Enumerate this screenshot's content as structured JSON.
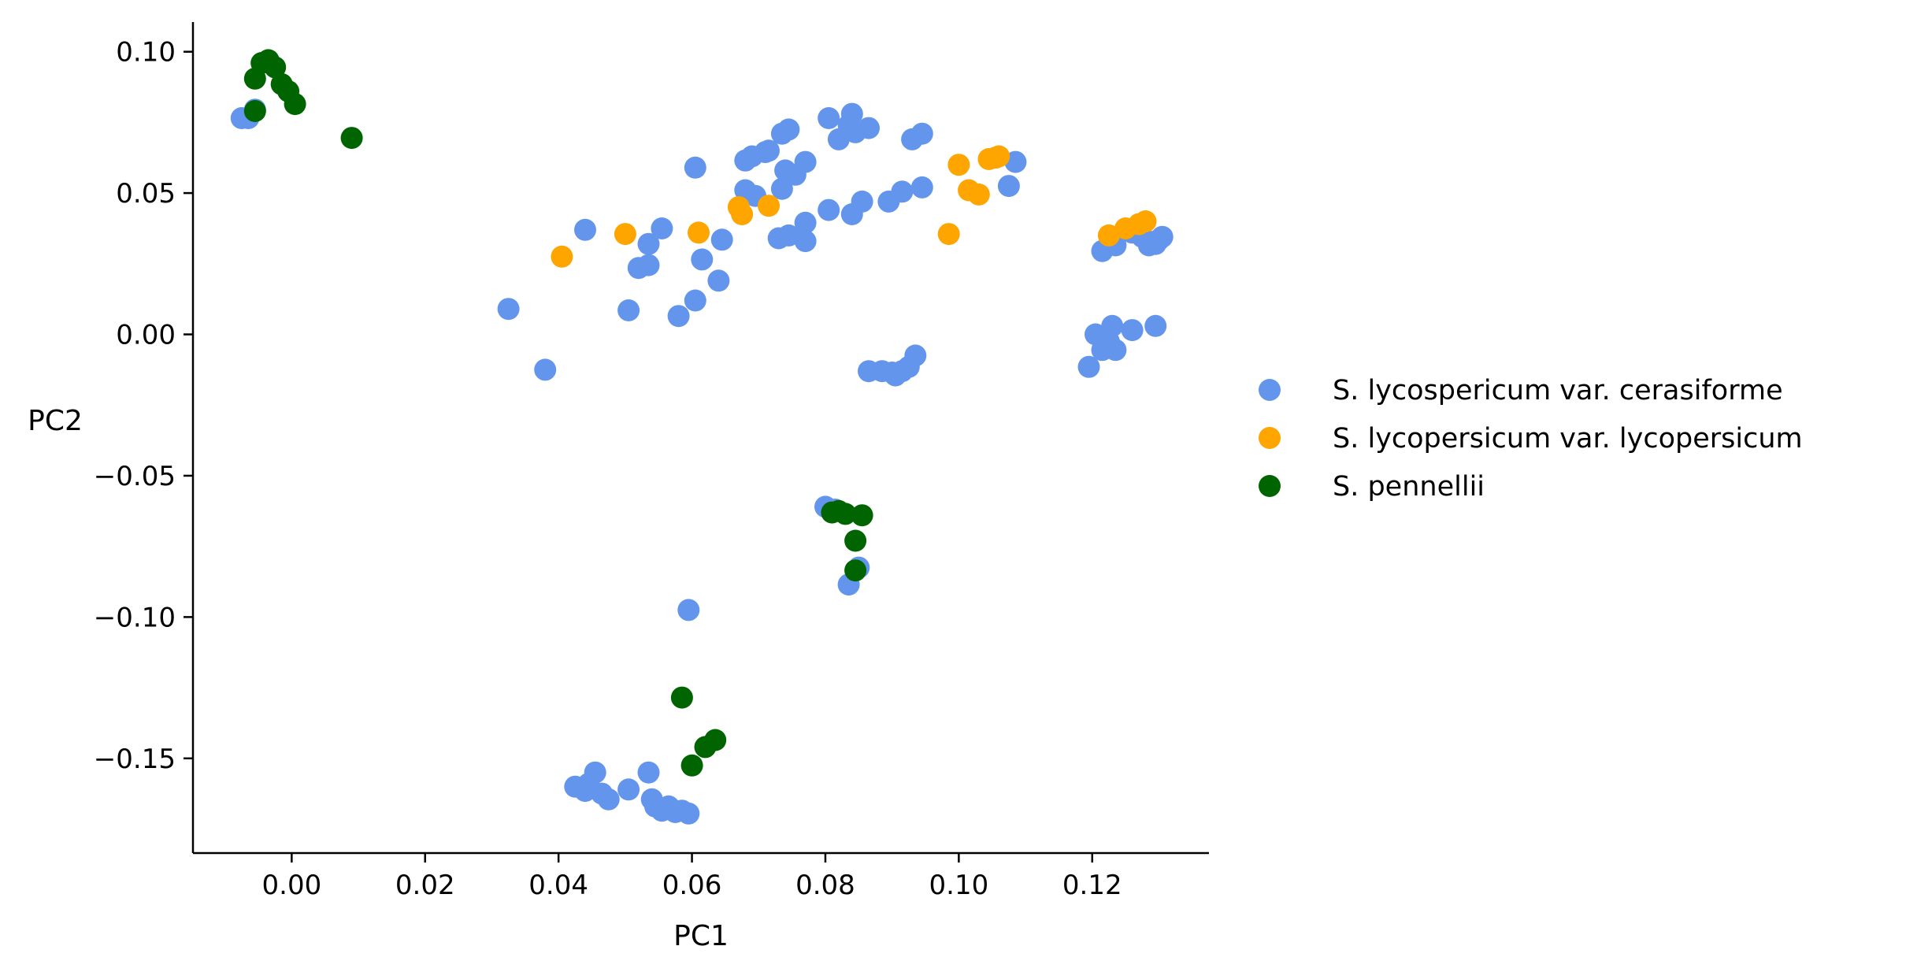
{
  "chart_data": {
    "type": "scatter",
    "xlabel": "PC1",
    "ylabel": "PC2",
    "xlim": [
      -0.0148,
      0.1375
    ],
    "ylim": [
      -0.1835,
      0.1105
    ],
    "xticks": [
      0.0,
      0.02,
      0.04,
      0.06,
      0.08,
      0.1,
      0.12
    ],
    "xtick_labels": [
      "0.00",
      "0.02",
      "0.04",
      "0.06",
      "0.08",
      "0.10",
      "0.12"
    ],
    "yticks": [
      0.1,
      0.05,
      0.0,
      -0.05,
      -0.1,
      -0.15
    ],
    "ytick_labels": [
      "0.10",
      "0.05",
      "0.00",
      "−0.05",
      "−0.10",
      "−0.15"
    ],
    "grid": false,
    "legend_position": "right, outside plot",
    "series": [
      {
        "name": "S. lycospericum var. cerasiforme",
        "color": "#6495ED",
        "points": [
          [
            -0.0075,
            0.0765
          ],
          [
            -0.0065,
            0.0765
          ],
          [
            -0.0055,
            0.0795
          ],
          [
            0.0325,
            0.009
          ],
          [
            0.038,
            -0.0125
          ],
          [
            0.044,
            0.037
          ],
          [
            0.0505,
            0.0085
          ],
          [
            0.052,
            0.0235
          ],
          [
            0.0535,
            0.0245
          ],
          [
            0.0535,
            0.032
          ],
          [
            0.0555,
            0.0375
          ],
          [
            0.058,
            0.0065
          ],
          [
            0.0605,
            0.059
          ],
          [
            0.0605,
            0.012
          ],
          [
            0.0615,
            0.0265
          ],
          [
            0.064,
            0.019
          ],
          [
            0.0645,
            0.0335
          ],
          [
            0.068,
            0.0615
          ],
          [
            0.069,
            0.063
          ],
          [
            0.071,
            0.0645
          ],
          [
            0.0715,
            0.065
          ],
          [
            0.068,
            0.051
          ],
          [
            0.0695,
            0.049
          ],
          [
            0.0735,
            0.071
          ],
          [
            0.0745,
            0.0725
          ],
          [
            0.074,
            0.058
          ],
          [
            0.0755,
            0.0565
          ],
          [
            0.077,
            0.061
          ],
          [
            0.0735,
            0.0515
          ],
          [
            0.073,
            0.034
          ],
          [
            0.0745,
            0.035
          ],
          [
            0.077,
            0.033
          ],
          [
            0.077,
            0.0395
          ],
          [
            0.0805,
            0.0765
          ],
          [
            0.0805,
            0.044
          ],
          [
            0.082,
            0.069
          ],
          [
            0.0835,
            0.074
          ],
          [
            0.084,
            0.078
          ],
          [
            0.0845,
            0.0715
          ],
          [
            0.0865,
            0.073
          ],
          [
            0.084,
            0.0425
          ],
          [
            0.0855,
            0.047
          ],
          [
            0.0895,
            0.047
          ],
          [
            0.0915,
            0.0505
          ],
          [
            0.093,
            0.069
          ],
          [
            0.0945,
            0.071
          ],
          [
            0.0945,
            0.052
          ],
          [
            0.1075,
            0.0525
          ],
          [
            0.1085,
            0.061
          ],
          [
            0.0865,
            -0.013
          ],
          [
            0.0885,
            -0.013
          ],
          [
            0.09,
            -0.0135
          ],
          [
            0.0905,
            -0.0145
          ],
          [
            0.0915,
            -0.013
          ],
          [
            0.0925,
            -0.0115
          ],
          [
            0.0935,
            -0.0075
          ],
          [
            0.1195,
            -0.0115
          ],
          [
            0.1205,
            0.0
          ],
          [
            0.1215,
            -0.0055
          ],
          [
            0.1225,
            -0.0025
          ],
          [
            0.123,
            0.003
          ],
          [
            0.1235,
            -0.0055
          ],
          [
            0.126,
            0.0015
          ],
          [
            0.1295,
            0.003
          ],
          [
            0.1215,
            0.0295
          ],
          [
            0.1235,
            0.0315
          ],
          [
            0.126,
            0.036
          ],
          [
            0.1275,
            0.0345
          ],
          [
            0.1285,
            0.0315
          ],
          [
            0.1295,
            0.032
          ],
          [
            0.13,
            0.0335
          ],
          [
            0.1305,
            0.0345
          ],
          [
            0.0595,
            -0.0975
          ],
          [
            0.0835,
            -0.0885
          ],
          [
            0.085,
            -0.0825
          ],
          [
            0.08,
            -0.061
          ],
          [
            0.0815,
            -0.062
          ],
          [
            0.0425,
            -0.16
          ],
          [
            0.044,
            -0.1615
          ],
          [
            0.0445,
            -0.159
          ],
          [
            0.0455,
            -0.155
          ],
          [
            0.0465,
            -0.1625
          ],
          [
            0.0475,
            -0.1645
          ],
          [
            0.0505,
            -0.161
          ],
          [
            0.0535,
            -0.155
          ],
          [
            0.054,
            -0.1645
          ],
          [
            0.0545,
            -0.167
          ],
          [
            0.0555,
            -0.1685
          ],
          [
            0.0565,
            -0.167
          ],
          [
            0.0575,
            -0.169
          ],
          [
            0.0585,
            -0.1685
          ],
          [
            0.0595,
            -0.1695
          ]
        ]
      },
      {
        "name": "S. lycopersicum var. lycopersicum",
        "color": "#FFA500",
        "points": [
          [
            0.0405,
            0.0275
          ],
          [
            0.05,
            0.0355
          ],
          [
            0.061,
            0.036
          ],
          [
            0.067,
            0.045
          ],
          [
            0.0675,
            0.0425
          ],
          [
            0.0715,
            0.0455
          ],
          [
            0.0985,
            0.0355
          ],
          [
            0.1,
            0.06
          ],
          [
            0.1015,
            0.051
          ],
          [
            0.103,
            0.0495
          ],
          [
            0.1045,
            0.062
          ],
          [
            0.1055,
            0.0625
          ],
          [
            0.106,
            0.063
          ],
          [
            0.1225,
            0.035
          ],
          [
            0.125,
            0.0375
          ],
          [
            0.127,
            0.039
          ],
          [
            0.128,
            0.04
          ]
        ]
      },
      {
        "name": "S. pennellii",
        "color": "#006400",
        "points": [
          [
            -0.0055,
            0.0905
          ],
          [
            -0.0055,
            0.079
          ],
          [
            -0.0045,
            0.096
          ],
          [
            -0.0035,
            0.097
          ],
          [
            -0.0025,
            0.0945
          ],
          [
            -0.0015,
            0.0885
          ],
          [
            -0.0005,
            0.086
          ],
          [
            0.0005,
            0.0815
          ],
          [
            0.009,
            0.0695
          ],
          [
            0.081,
            -0.063
          ],
          [
            0.082,
            -0.0625
          ],
          [
            0.083,
            -0.0635
          ],
          [
            0.0855,
            -0.064
          ],
          [
            0.0845,
            -0.073
          ],
          [
            0.0845,
            -0.0835
          ],
          [
            0.0585,
            -0.1285
          ],
          [
            0.06,
            -0.1525
          ],
          [
            0.062,
            -0.146
          ],
          [
            0.0635,
            -0.1435
          ]
        ]
      }
    ]
  }
}
